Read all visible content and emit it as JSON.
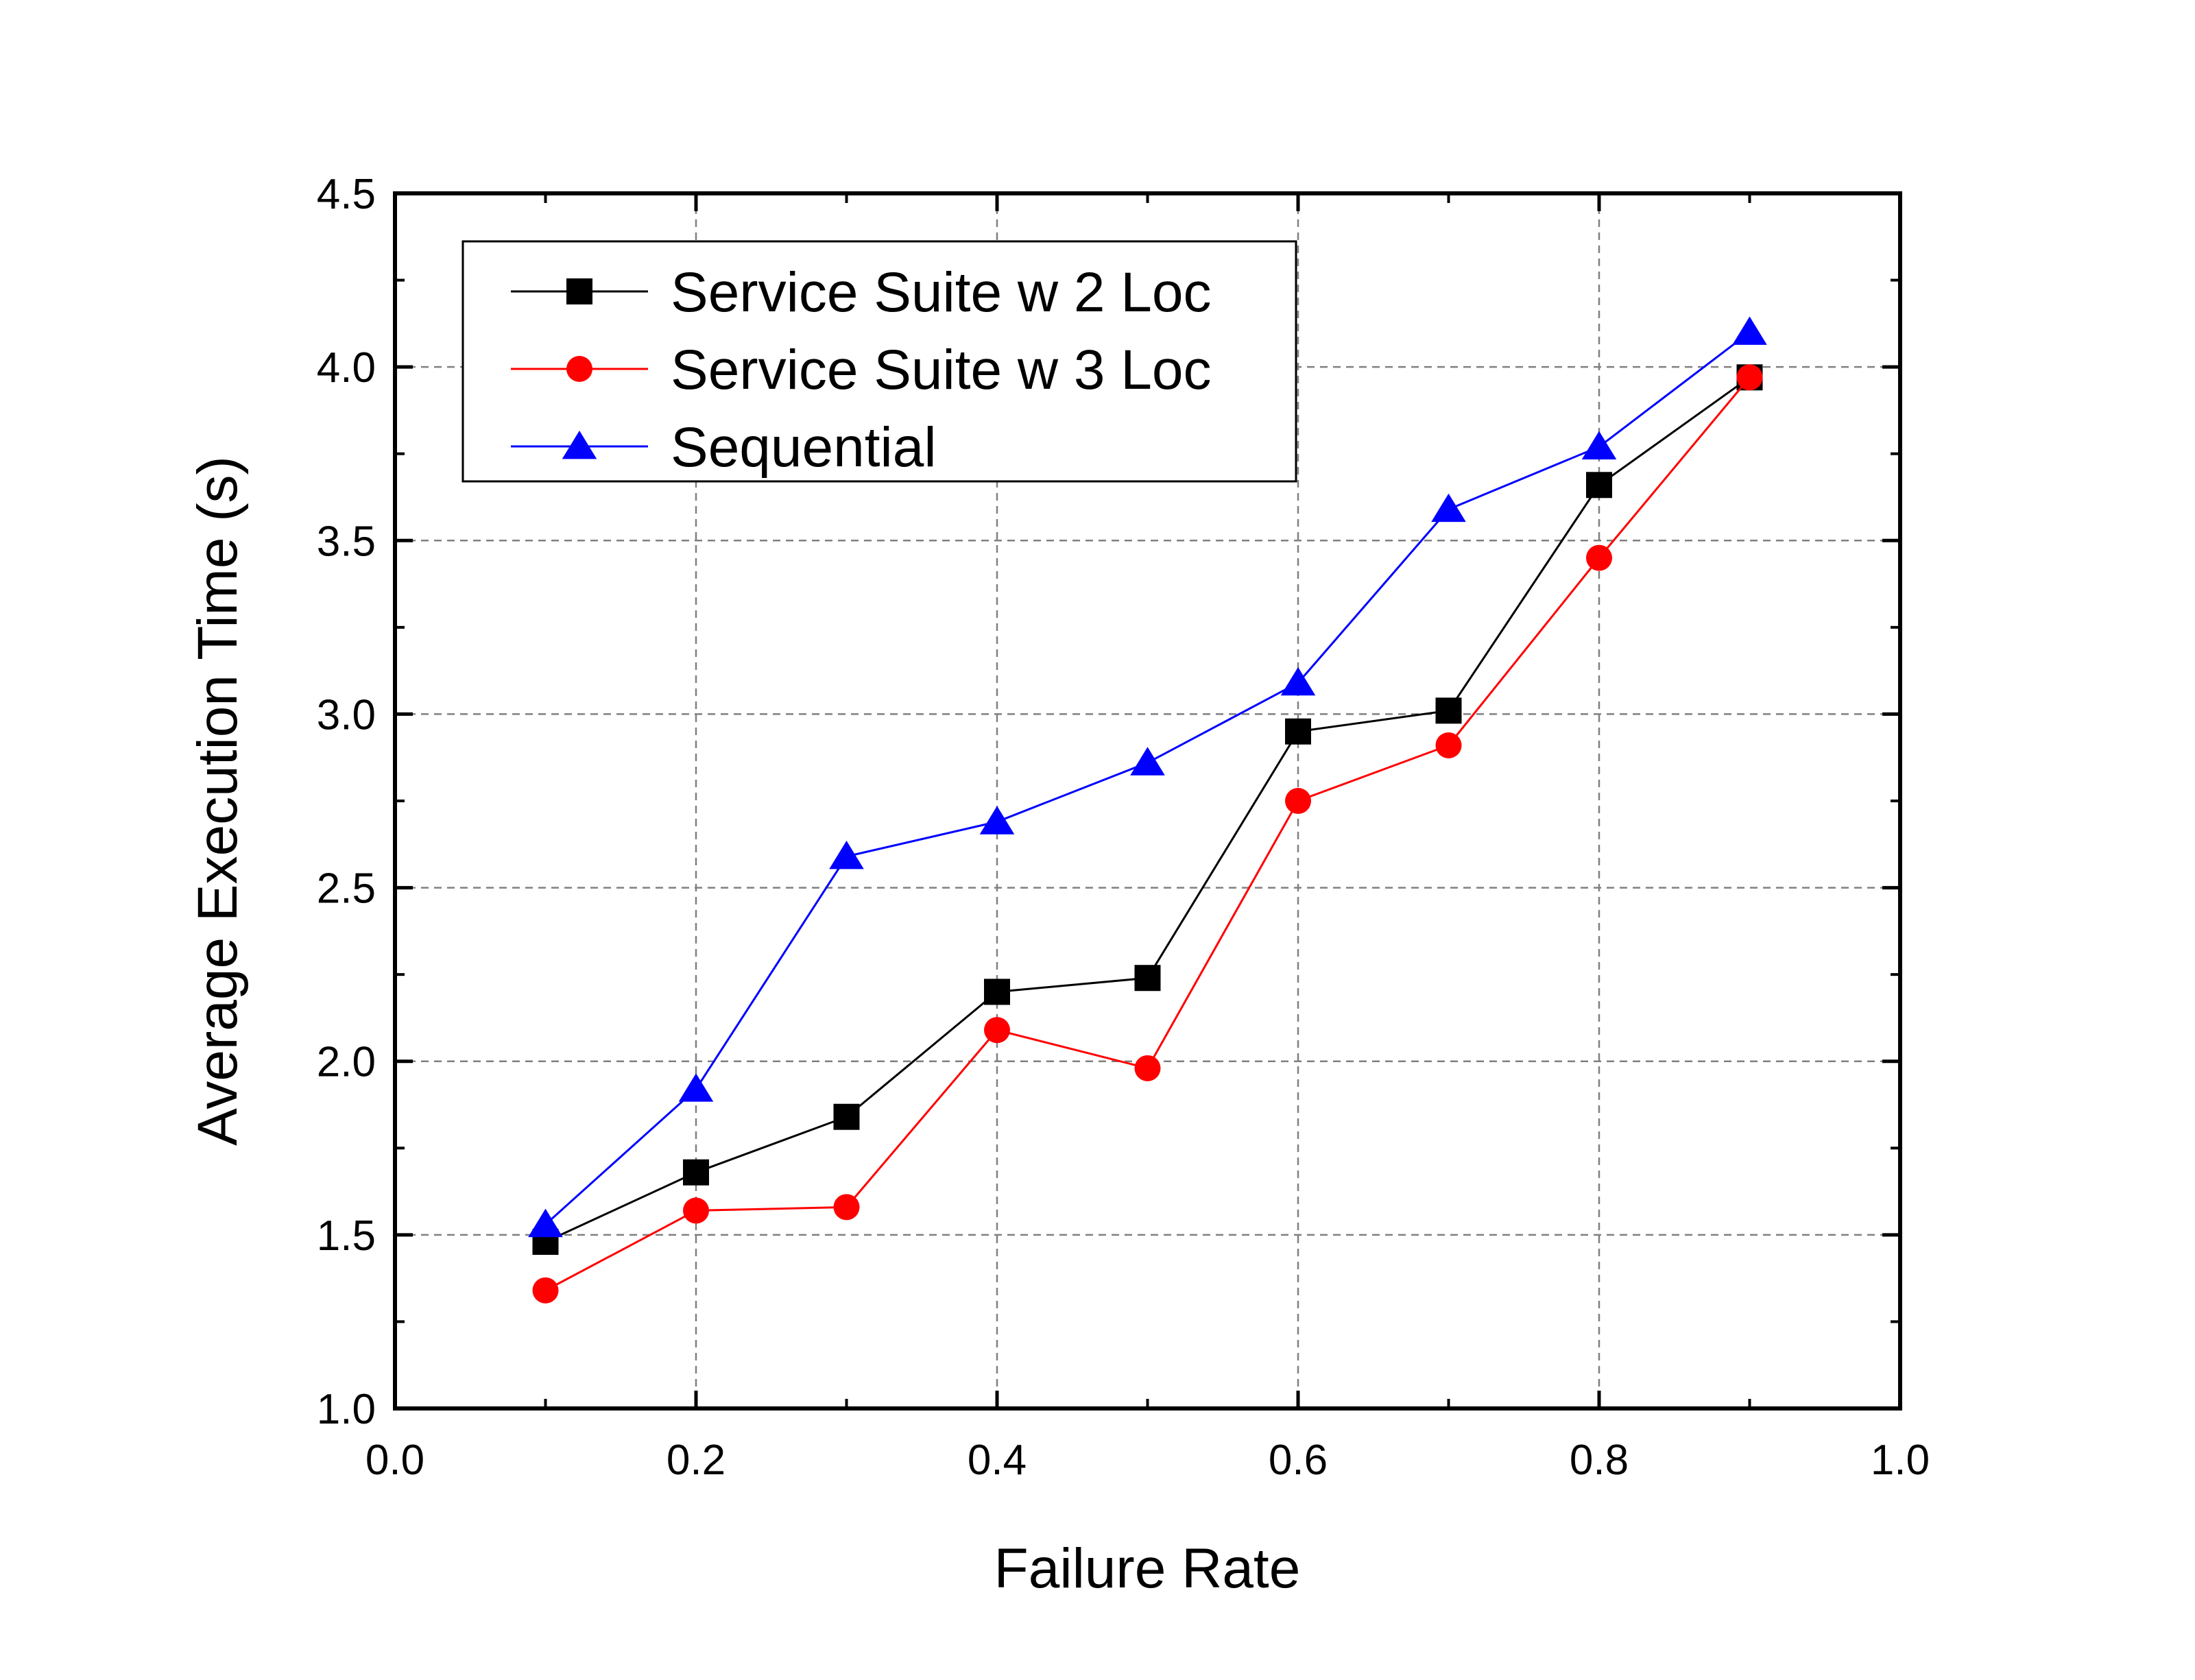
{
  "chart_data": {
    "type": "line",
    "xlabel": "Failure Rate",
    "ylabel": "Average Execution Time (s)",
    "xlim": [
      0.0,
      1.0
    ],
    "ylim": [
      1.0,
      4.5
    ],
    "xticks": [
      "0.0",
      "0.2",
      "0.4",
      "0.6",
      "0.8",
      "1.0"
    ],
    "yticks": [
      "1.0",
      "1.5",
      "2.0",
      "2.5",
      "3.0",
      "3.5",
      "4.0",
      "4.5"
    ],
    "grid": true,
    "legend_position": "top-left",
    "x": [
      0.1,
      0.2,
      0.3,
      0.4,
      0.5,
      0.6,
      0.7,
      0.8,
      0.9
    ],
    "series": [
      {
        "name": "Service Suite w 2 Loc",
        "color": "#000000",
        "marker": "square",
        "values": [
          1.48,
          1.68,
          1.84,
          2.2,
          2.24,
          2.95,
          3.01,
          3.66,
          3.97
        ]
      },
      {
        "name": "Service Suite w 3 Loc",
        "color": "#ff0000",
        "marker": "circle",
        "values": [
          1.34,
          1.57,
          1.58,
          2.09,
          1.98,
          2.75,
          2.91,
          3.45,
          3.97
        ]
      },
      {
        "name": "Sequential",
        "color": "#0000ff",
        "marker": "triangle",
        "values": [
          1.53,
          1.92,
          2.59,
          2.69,
          2.86,
          3.09,
          3.59,
          3.77,
          4.1
        ]
      }
    ]
  }
}
